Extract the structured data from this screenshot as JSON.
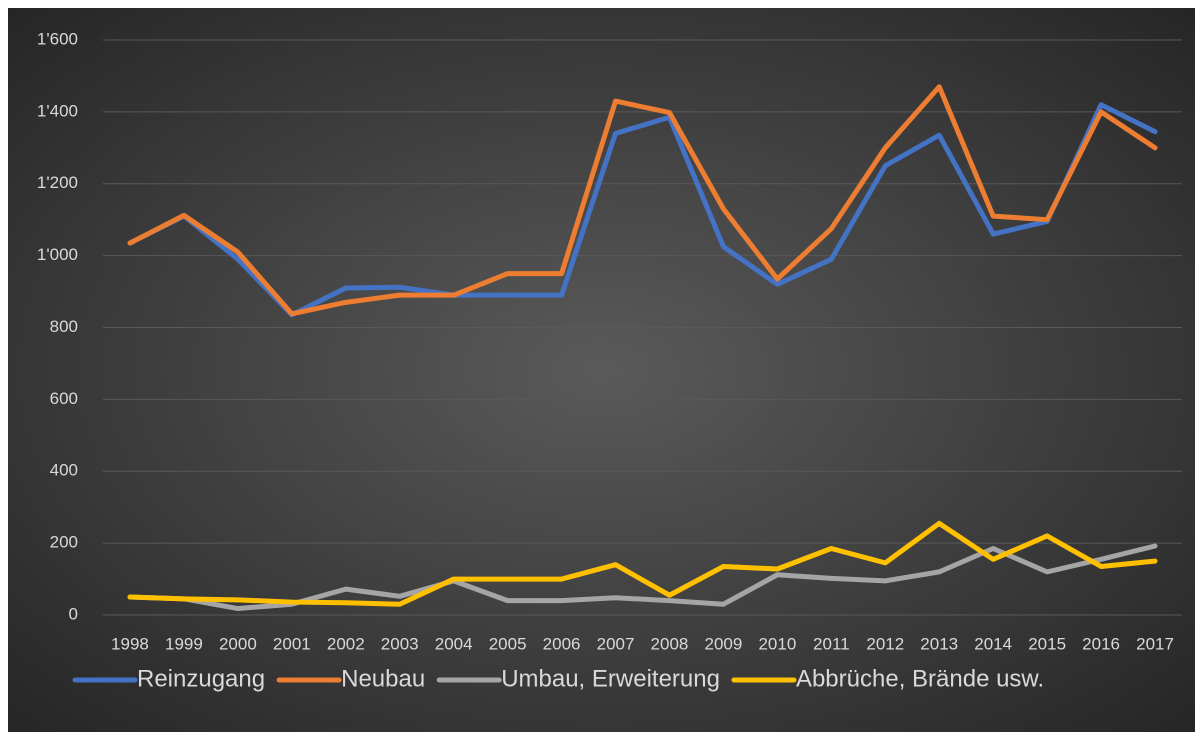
{
  "chart_data": {
    "type": "line",
    "categories": [
      "1998",
      "1999",
      "2000",
      "2001",
      "2002",
      "2003",
      "2004",
      "2005",
      "2006",
      "2007",
      "2008",
      "2009",
      "2010",
      "2011",
      "2012",
      "2013",
      "2014",
      "2015",
      "2016",
      "2017"
    ],
    "series": [
      {
        "name": "Reinzugang",
        "color": "#4472c4",
        "values": [
          1035,
          1110,
          990,
          835,
          910,
          912,
          890,
          890,
          890,
          1340,
          1385,
          1025,
          920,
          990,
          1250,
          1335,
          1060,
          1095,
          1420,
          1345
        ]
      },
      {
        "name": "Neubau",
        "color": "#ed7d31",
        "values": [
          1035,
          1112,
          1010,
          838,
          870,
          890,
          890,
          950,
          950,
          1430,
          1398,
          1130,
          935,
          1075,
          1300,
          1470,
          1110,
          1100,
          1400,
          1300
        ]
      },
      {
        "name": "Umbau, Erweiterung",
        "color": "#a5a5a5",
        "values": [
          50,
          45,
          18,
          30,
          72,
          52,
          95,
          40,
          40,
          48,
          40,
          30,
          112,
          102,
          95,
          120,
          185,
          120,
          155,
          192
        ]
      },
      {
        "name": "Abbrüche, Brände usw.",
        "color": "#ffc000",
        "values": [
          50,
          45,
          42,
          36,
          34,
          30,
          100,
          100,
          100,
          140,
          55,
          135,
          128,
          185,
          145,
          255,
          155,
          220,
          135,
          150
        ]
      }
    ],
    "ylim": [
      0,
      1600
    ],
    "yticks": [
      0,
      200,
      400,
      600,
      800,
      {
        "value": 1000,
        "label": "1'000"
      },
      {
        "value": 1200,
        "label": "1'200"
      },
      {
        "value": 1400,
        "label": "1'400"
      },
      {
        "value": 1600,
        "label": "1'600"
      }
    ],
    "grid": true,
    "legend": "bottom"
  }
}
